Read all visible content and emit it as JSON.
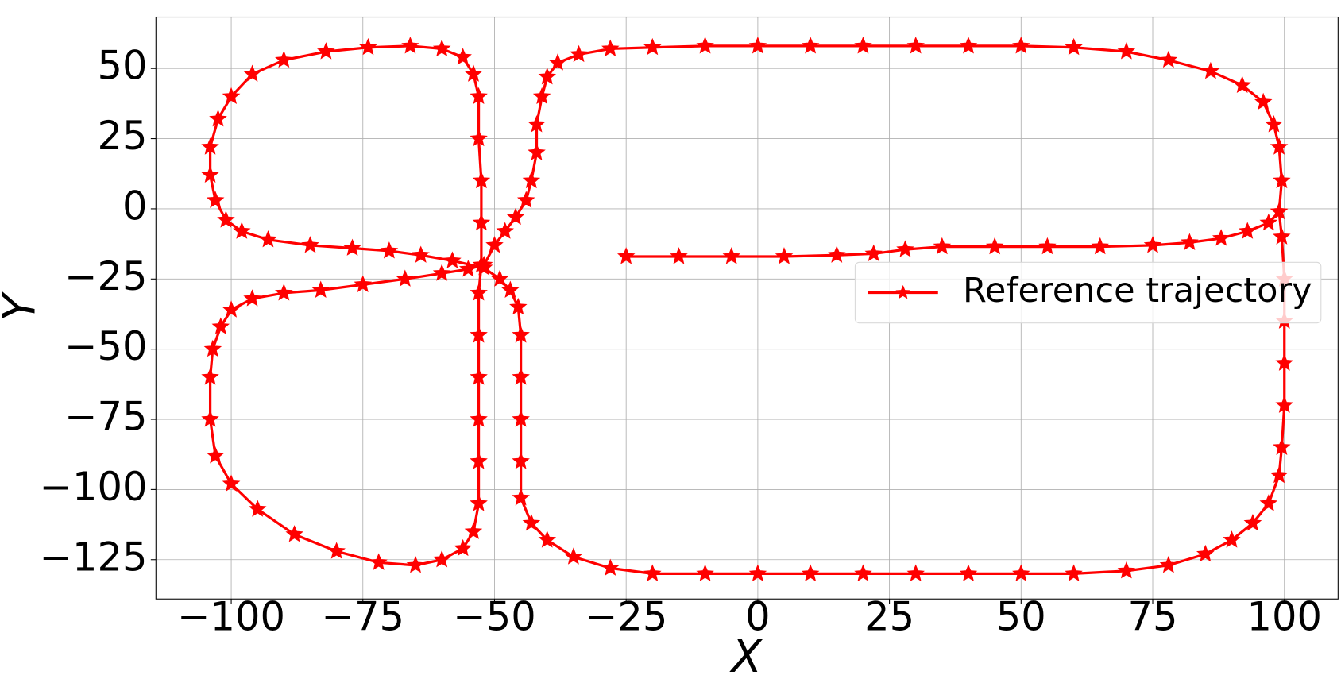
{
  "chart_data": {
    "type": "line",
    "x_label": "X",
    "y_label": "Y",
    "x": [
      -25,
      -15,
      -5,
      5,
      15,
      22,
      28,
      35,
      45,
      55,
      65,
      75,
      82,
      88,
      93,
      97,
      99,
      99.5,
      99,
      98,
      96,
      92,
      86,
      78,
      70,
      60,
      50,
      40,
      30,
      20,
      10,
      0,
      -10,
      -20,
      -28,
      -34,
      -38,
      -40,
      -41,
      -42,
      -42,
      -43,
      -44,
      -46,
      -48,
      -50,
      -52,
      -55,
      -60,
      -67,
      -75,
      -83,
      -90,
      -96,
      -100,
      -102,
      -103.5,
      -104,
      -104,
      -103,
      -100,
      -95,
      -88,
      -80,
      -72,
      -65,
      -60,
      -56,
      -54,
      -53,
      -53,
      -53,
      -53,
      -53,
      -53,
      -52.5,
      -52.5,
      -52.5,
      -53,
      -53,
      -54,
      -56,
      -60,
      -66,
      -74,
      -82,
      -90,
      -96,
      -100,
      -102.5,
      -104,
      -104,
      -103,
      -101,
      -98,
      -93,
      -85,
      -77,
      -70,
      -64,
      -58,
      -52,
      -49,
      -47,
      -45.5,
      -45,
      -45,
      -45,
      -45,
      -45,
      -43,
      -40,
      -35,
      -28,
      -20,
      -10,
      0,
      10,
      20,
      30,
      40,
      50,
      60,
      70,
      78,
      85,
      90,
      94,
      97,
      99,
      99.5,
      100,
      100,
      100,
      100,
      99.5,
      99
    ],
    "series": [
      {
        "name": "Reference trajectory",
        "color": "#ff0000",
        "values": [
          -17,
          -17,
          -17,
          -17,
          -16.5,
          -16,
          -14.5,
          -13.5,
          -13.5,
          -13.5,
          -13.5,
          -13,
          -12,
          -10.5,
          -8,
          -5,
          -1,
          10,
          22,
          30,
          38,
          44,
          49,
          53,
          56,
          57.5,
          58,
          58,
          58,
          58,
          58,
          58,
          58,
          57.5,
          57,
          55,
          52,
          47,
          40,
          30,
          20,
          10,
          3,
          -3,
          -8,
          -13,
          -20,
          -21.5,
          -23,
          -25,
          -27,
          -29,
          -30,
          -32,
          -36,
          -42,
          -50,
          -60,
          -75,
          -88,
          -98,
          -107,
          -116,
          -122,
          -126,
          -127,
          -125,
          -121,
          -115,
          -105,
          -90,
          -75,
          -60,
          -45,
          -30,
          -20,
          -5,
          10,
          25,
          40,
          48,
          54,
          57,
          58,
          57.5,
          56,
          53,
          48,
          40,
          32,
          22,
          12,
          3,
          -4,
          -8,
          -11,
          -13,
          -14,
          -15,
          -16.5,
          -18.5,
          -21,
          -25,
          -29,
          -35,
          -45,
          -60,
          -75,
          -90,
          -103,
          -112,
          -118,
          -124,
          -128,
          -130,
          -130,
          -130,
          -130,
          -130,
          -130,
          -130,
          -130,
          -130,
          -129,
          -127,
          -123,
          -118,
          -112,
          -105,
          -95,
          -85,
          -70,
          -55,
          -40,
          -25,
          -10,
          -1
        ]
      }
    ],
    "xlim": [
      -114.3,
      110.2
    ],
    "ylim": [
      -139,
      68.3
    ],
    "xticks": [
      {
        "value": -100,
        "label": "−100"
      },
      {
        "value": -75,
        "label": "−75"
      },
      {
        "value": -50,
        "label": "−50"
      },
      {
        "value": -25,
        "label": "−25"
      },
      0,
      25,
      50,
      75,
      100
    ],
    "yticks": [
      {
        "value": -125,
        "label": "−125"
      },
      {
        "value": -100,
        "label": "−100"
      },
      {
        "value": -75,
        "label": "−75"
      },
      {
        "value": -50,
        "label": "−50"
      },
      {
        "value": -25,
        "label": "−25"
      },
      0,
      25,
      50
    ],
    "grid": true,
    "legend": "center right"
  }
}
